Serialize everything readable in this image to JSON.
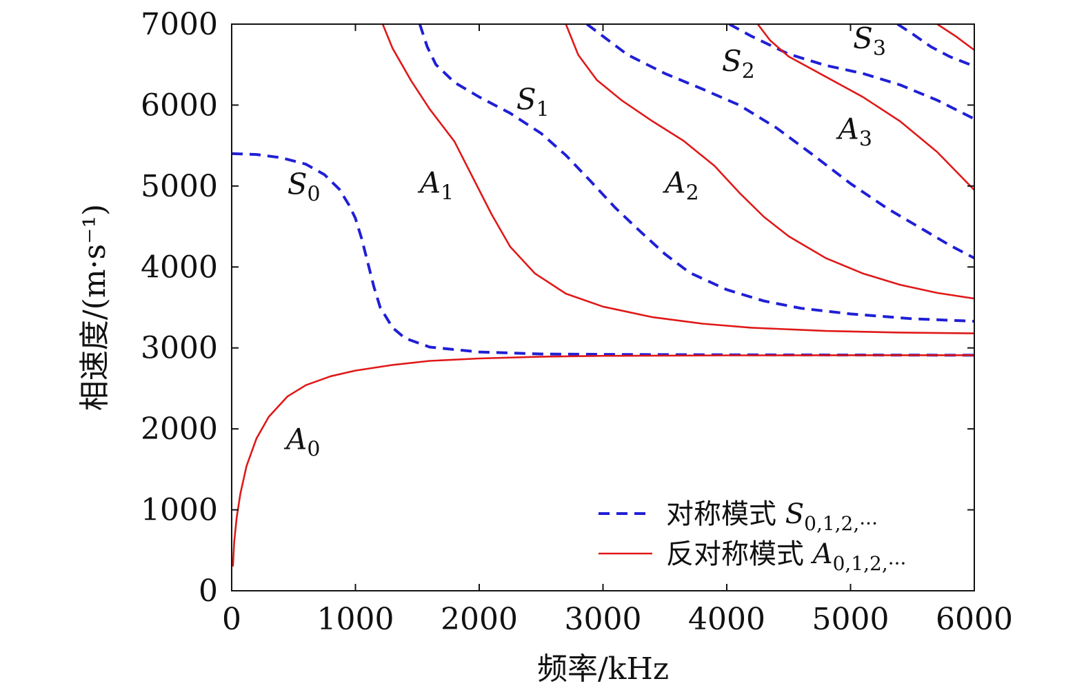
{
  "chart_data": {
    "type": "line",
    "xlabel": "频率/kHz",
    "ylabel": "相速度/(m·s⁻¹)",
    "xlim": [
      0,
      6000
    ],
    "ylim": [
      0,
      7000
    ],
    "xticks": [
      0,
      1000,
      2000,
      3000,
      4000,
      5000,
      6000
    ],
    "yticks": [
      0,
      1000,
      2000,
      3000,
      4000,
      5000,
      6000,
      7000
    ],
    "grid": false,
    "legend_position": "bottom-right",
    "colors": {
      "symmetric": "#1f1fd6",
      "antisymmetric": "#e01818"
    },
    "legend": [
      {
        "key": "symmetric",
        "text": "对称模式 ",
        "math_letter": "S",
        "math_sub": "0,1,2,···",
        "style": "dashed"
      },
      {
        "key": "antisymmetric",
        "text": "反对称模式 ",
        "math_letter": "A",
        "math_sub": "0,1,2,···",
        "style": "solid"
      }
    ],
    "series": [
      {
        "name": "S0",
        "family": "symmetric",
        "label": {
          "letter": "S",
          "sub": "0",
          "at": [
            450,
            4900
          ]
        },
        "points": [
          [
            0,
            5400
          ],
          [
            200,
            5390
          ],
          [
            400,
            5350
          ],
          [
            600,
            5270
          ],
          [
            750,
            5140
          ],
          [
            870,
            4960
          ],
          [
            950,
            4760
          ],
          [
            1000,
            4600
          ],
          [
            1050,
            4350
          ],
          [
            1100,
            4050
          ],
          [
            1150,
            3750
          ],
          [
            1200,
            3500
          ],
          [
            1300,
            3250
          ],
          [
            1400,
            3120
          ],
          [
            1600,
            3010
          ],
          [
            2000,
            2950
          ],
          [
            2500,
            2925
          ],
          [
            3000,
            2920
          ],
          [
            4000,
            2915
          ],
          [
            5000,
            2912
          ],
          [
            6000,
            2910
          ]
        ]
      },
      {
        "name": "S1",
        "family": "symmetric",
        "label": {
          "letter": "S",
          "sub": "1",
          "at": [
            2300,
            5950
          ]
        },
        "points": [
          [
            1520,
            7000
          ],
          [
            1580,
            6720
          ],
          [
            1650,
            6500
          ],
          [
            1800,
            6280
          ],
          [
            2000,
            6100
          ],
          [
            2250,
            5900
          ],
          [
            2500,
            5650
          ],
          [
            2700,
            5380
          ],
          [
            2900,
            5060
          ],
          [
            3100,
            4730
          ],
          [
            3300,
            4440
          ],
          [
            3500,
            4160
          ],
          [
            3700,
            3930
          ],
          [
            4000,
            3720
          ],
          [
            4300,
            3580
          ],
          [
            4600,
            3490
          ],
          [
            5000,
            3420
          ],
          [
            5500,
            3360
          ],
          [
            6000,
            3330
          ]
        ]
      },
      {
        "name": "S2",
        "family": "symmetric",
        "label": {
          "letter": "S",
          "sub": "2",
          "at": [
            3960,
            6420
          ]
        },
        "points": [
          [
            2870,
            7000
          ],
          [
            3000,
            6850
          ],
          [
            3200,
            6620
          ],
          [
            3500,
            6390
          ],
          [
            3800,
            6200
          ],
          [
            4100,
            6000
          ],
          [
            4400,
            5720
          ],
          [
            4700,
            5380
          ],
          [
            5000,
            5030
          ],
          [
            5300,
            4720
          ],
          [
            5600,
            4450
          ],
          [
            5800,
            4270
          ],
          [
            6000,
            4110
          ]
        ]
      },
      {
        "name": "S3",
        "family": "symmetric",
        "label": {
          "letter": "S",
          "sub": "3",
          "at": [
            5020,
            6700
          ]
        },
        "points": [
          [
            4020,
            7000
          ],
          [
            4200,
            6850
          ],
          [
            4500,
            6630
          ],
          [
            4800,
            6490
          ],
          [
            5100,
            6390
          ],
          [
            5400,
            6250
          ],
          [
            5700,
            6060
          ],
          [
            6000,
            5830
          ]
        ]
      },
      {
        "name": "S4",
        "family": "symmetric",
        "label": null,
        "points": [
          [
            5380,
            7000
          ],
          [
            5500,
            6880
          ],
          [
            5650,
            6720
          ],
          [
            5800,
            6600
          ],
          [
            6000,
            6480
          ]
        ]
      },
      {
        "name": "A0",
        "family": "antisymmetric",
        "label": {
          "letter": "A",
          "sub": "0",
          "at": [
            440,
            1750
          ]
        },
        "points": [
          [
            10,
            300
          ],
          [
            20,
            600
          ],
          [
            40,
            900
          ],
          [
            70,
            1200
          ],
          [
            120,
            1540
          ],
          [
            200,
            1880
          ],
          [
            300,
            2150
          ],
          [
            450,
            2400
          ],
          [
            600,
            2540
          ],
          [
            800,
            2650
          ],
          [
            1000,
            2720
          ],
          [
            1300,
            2790
          ],
          [
            1600,
            2840
          ],
          [
            2000,
            2870
          ],
          [
            2500,
            2892
          ],
          [
            3000,
            2902
          ],
          [
            4000,
            2908
          ],
          [
            5000,
            2910
          ],
          [
            6000,
            2910
          ]
        ]
      },
      {
        "name": "A1",
        "family": "antisymmetric",
        "label": {
          "letter": "A",
          "sub": "1",
          "at": [
            1520,
            4920
          ]
        },
        "points": [
          [
            1220,
            7000
          ],
          [
            1300,
            6700
          ],
          [
            1450,
            6300
          ],
          [
            1600,
            5950
          ],
          [
            1800,
            5550
          ],
          [
            1950,
            5100
          ],
          [
            2100,
            4650
          ],
          [
            2250,
            4250
          ],
          [
            2450,
            3920
          ],
          [
            2700,
            3670
          ],
          [
            3000,
            3510
          ],
          [
            3400,
            3380
          ],
          [
            3800,
            3300
          ],
          [
            4200,
            3250
          ],
          [
            4800,
            3210
          ],
          [
            5400,
            3190
          ],
          [
            6000,
            3180
          ]
        ]
      },
      {
        "name": "A2",
        "family": "antisymmetric",
        "label": {
          "letter": "A",
          "sub": "2",
          "at": [
            3500,
            4920
          ]
        },
        "points": [
          [
            2700,
            7000
          ],
          [
            2800,
            6620
          ],
          [
            2950,
            6310
          ],
          [
            3150,
            6060
          ],
          [
            3400,
            5800
          ],
          [
            3650,
            5560
          ],
          [
            3900,
            5250
          ],
          [
            4100,
            4920
          ],
          [
            4300,
            4620
          ],
          [
            4500,
            4380
          ],
          [
            4800,
            4110
          ],
          [
            5100,
            3920
          ],
          [
            5400,
            3780
          ],
          [
            5700,
            3680
          ],
          [
            6000,
            3610
          ]
        ]
      },
      {
        "name": "A3",
        "family": "antisymmetric",
        "label": {
          "letter": "A",
          "sub": "3",
          "at": [
            4900,
            5580
          ]
        },
        "points": [
          [
            4250,
            7000
          ],
          [
            4350,
            6800
          ],
          [
            4500,
            6600
          ],
          [
            4800,
            6350
          ],
          [
            5100,
            6100
          ],
          [
            5400,
            5800
          ],
          [
            5700,
            5420
          ],
          [
            6000,
            4950
          ]
        ]
      },
      {
        "name": "A4",
        "family": "antisymmetric",
        "label": null,
        "points": [
          [
            5700,
            7000
          ],
          [
            5850,
            6850
          ],
          [
            6000,
            6680
          ]
        ]
      }
    ]
  }
}
